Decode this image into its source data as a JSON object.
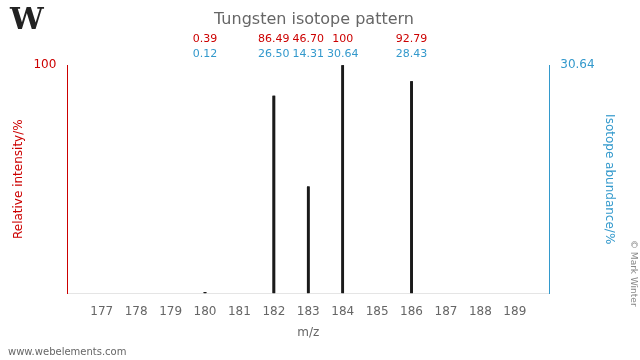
{
  "chart_data": {
    "type": "bar",
    "title": "Tungsten isotope pattern",
    "xlabel": "m/z",
    "ylabel": "Relative intensity/%",
    "y2label": "Isotope abundance/%",
    "x": [
      180,
      182,
      183,
      184,
      186
    ],
    "color": "#1a1a1a",
    "series": [
      {
        "color": "#cc0000",
        "values": [
          0.39,
          86.49,
          46.7,
          100,
          92.79
        ],
        "value_labels": [
          "0.39",
          "86.49",
          "46.70",
          "100",
          "92.79"
        ]
      },
      {
        "color": "#3399cc",
        "axis": "y2",
        "values": [
          0.12,
          26.5,
          14.31,
          30.64,
          28.43
        ],
        "value_labels": [
          "0.12",
          "26.50",
          "14.31",
          "30.64",
          "28.43"
        ]
      }
    ],
    "xlim": [
      176,
      190
    ],
    "xticks": [
      177,
      178,
      179,
      180,
      181,
      182,
      183,
      184,
      185,
      186,
      187,
      188,
      189
    ],
    "ylim": [
      0,
      100
    ],
    "yticks": [
      100
    ],
    "y2lim": [
      0,
      30.64
    ],
    "y2ticks": [
      30.64
    ],
    "grid": false,
    "data_labels": true,
    "annotations": [
      "W",
      "www.webelements.com",
      "© Mark Winter"
    ]
  }
}
